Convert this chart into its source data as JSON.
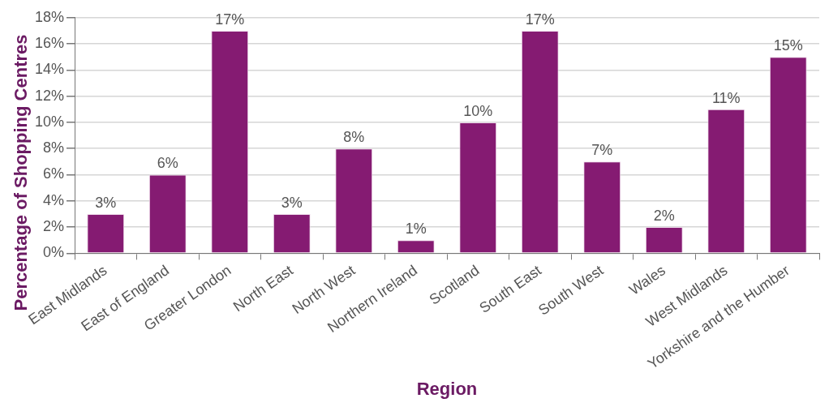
{
  "chart_data": {
    "type": "bar",
    "xlabel": "Region",
    "ylabel": "Percentage of Shopping Centres",
    "categories": [
      "East Midlands",
      "East of England",
      "Greater London",
      "North East",
      "North West",
      "Northern Ireland",
      "Scotland",
      "South East",
      "South West",
      "Wales",
      "West Midlands",
      "Yorkshire and the Humber"
    ],
    "values": [
      3,
      6,
      17,
      3,
      8,
      1,
      10,
      17,
      7,
      2,
      11,
      15
    ],
    "value_labels": [
      "3%",
      "6%",
      "17%",
      "3%",
      "8%",
      "1%",
      "10%",
      "17%",
      "7%",
      "2%",
      "11%",
      "15%"
    ],
    "color": "#851b72",
    "ylim": [
      0,
      18
    ],
    "yticks": [
      {
        "value": 0,
        "label": "0%"
      },
      {
        "value": 2,
        "label": "2%"
      },
      {
        "value": 4,
        "label": "4%"
      },
      {
        "value": 6,
        "label": "6%"
      },
      {
        "value": 8,
        "label": "8%"
      },
      {
        "value": 10,
        "label": "10%"
      },
      {
        "value": 12,
        "label": "12%"
      },
      {
        "value": 14,
        "label": "14%"
      },
      {
        "value": 16,
        "label": "16%"
      },
      {
        "value": 18,
        "label": "18%"
      }
    ],
    "grid": "y",
    "legend": false
  }
}
